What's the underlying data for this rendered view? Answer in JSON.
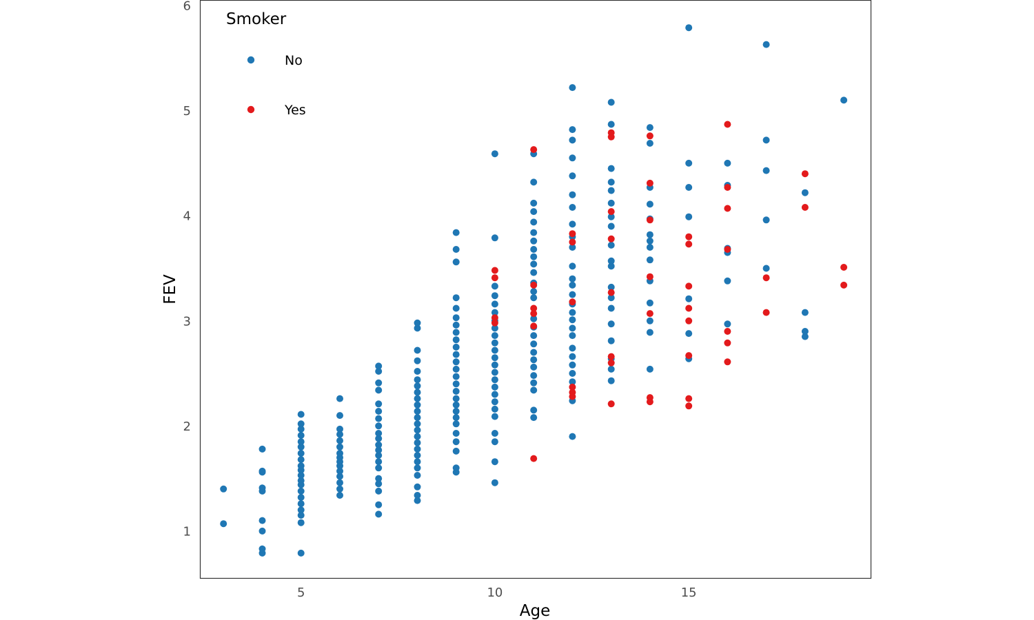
{
  "chart_data": {
    "type": "scatter",
    "title": "",
    "xlabel": "Age",
    "ylabel": "FEV",
    "xlim": [
      2.4,
      19.7
    ],
    "ylim": [
      0.55,
      6.05
    ],
    "xticks": [
      5,
      10,
      15
    ],
    "yticks": [
      1,
      2,
      3,
      4,
      5,
      6
    ],
    "grid": false,
    "legend": {
      "title": "Smoker",
      "placement": "top-left"
    },
    "colors": {
      "No": "#1f77b4",
      "Yes": "#e31a1c"
    },
    "series": [
      {
        "name": "No",
        "points": [
          [
            3,
            1.07
          ],
          [
            3,
            1.4
          ],
          [
            4,
            0.79
          ],
          [
            4,
            0.83
          ],
          [
            4,
            1.0
          ],
          [
            4,
            1.1
          ],
          [
            4,
            1.38
          ],
          [
            4,
            1.41
          ],
          [
            4,
            1.56
          ],
          [
            4,
            1.57
          ],
          [
            4,
            1.78
          ],
          [
            5,
            0.79
          ],
          [
            5,
            1.08
          ],
          [
            5,
            1.15
          ],
          [
            5,
            1.2
          ],
          [
            5,
            1.26
          ],
          [
            5,
            1.32
          ],
          [
            5,
            1.38
          ],
          [
            5,
            1.44
          ],
          [
            5,
            1.48
          ],
          [
            5,
            1.53
          ],
          [
            5,
            1.58
          ],
          [
            5,
            1.62
          ],
          [
            5,
            1.68
          ],
          [
            5,
            1.74
          ],
          [
            5,
            1.8
          ],
          [
            5,
            1.85
          ],
          [
            5,
            1.91
          ],
          [
            5,
            1.97
          ],
          [
            5,
            2.02
          ],
          [
            5,
            2.11
          ],
          [
            6,
            1.34
          ],
          [
            6,
            1.4
          ],
          [
            6,
            1.46
          ],
          [
            6,
            1.52
          ],
          [
            6,
            1.57
          ],
          [
            6,
            1.62
          ],
          [
            6,
            1.66
          ],
          [
            6,
            1.7
          ],
          [
            6,
            1.74
          ],
          [
            6,
            1.8
          ],
          [
            6,
            1.86
          ],
          [
            6,
            1.92
          ],
          [
            6,
            1.97
          ],
          [
            6,
            2.1
          ],
          [
            6,
            2.26
          ],
          [
            7,
            1.16
          ],
          [
            7,
            1.25
          ],
          [
            7,
            1.38
          ],
          [
            7,
            1.45
          ],
          [
            7,
            1.5
          ],
          [
            7,
            1.6
          ],
          [
            7,
            1.66
          ],
          [
            7,
            1.72
          ],
          [
            7,
            1.77
          ],
          [
            7,
            1.82
          ],
          [
            7,
            1.88
          ],
          [
            7,
            1.93
          ],
          [
            7,
            2.0
          ],
          [
            7,
            2.07
          ],
          [
            7,
            2.14
          ],
          [
            7,
            2.21
          ],
          [
            7,
            2.34
          ],
          [
            7,
            2.41
          ],
          [
            7,
            2.52
          ],
          [
            7,
            2.57
          ],
          [
            8,
            1.29
          ],
          [
            8,
            1.34
          ],
          [
            8,
            1.42
          ],
          [
            8,
            1.53
          ],
          [
            8,
            1.6
          ],
          [
            8,
            1.66
          ],
          [
            8,
            1.72
          ],
          [
            8,
            1.78
          ],
          [
            8,
            1.84
          ],
          [
            8,
            1.9
          ],
          [
            8,
            1.96
          ],
          [
            8,
            2.02
          ],
          [
            8,
            2.08
          ],
          [
            8,
            2.14
          ],
          [
            8,
            2.2
          ],
          [
            8,
            2.26
          ],
          [
            8,
            2.32
          ],
          [
            8,
            2.38
          ],
          [
            8,
            2.44
          ],
          [
            8,
            2.52
          ],
          [
            8,
            2.62
          ],
          [
            8,
            2.72
          ],
          [
            8,
            2.93
          ],
          [
            8,
            2.98
          ],
          [
            9,
            1.56
          ],
          [
            9,
            1.6
          ],
          [
            9,
            1.76
          ],
          [
            9,
            1.85
          ],
          [
            9,
            1.93
          ],
          [
            9,
            2.02
          ],
          [
            9,
            2.08
          ],
          [
            9,
            2.14
          ],
          [
            9,
            2.2
          ],
          [
            9,
            2.26
          ],
          [
            9,
            2.33
          ],
          [
            9,
            2.4
          ],
          [
            9,
            2.47
          ],
          [
            9,
            2.54
          ],
          [
            9,
            2.61
          ],
          [
            9,
            2.68
          ],
          [
            9,
            2.75
          ],
          [
            9,
            2.82
          ],
          [
            9,
            2.89
          ],
          [
            9,
            2.96
          ],
          [
            9,
            3.03
          ],
          [
            9,
            3.12
          ],
          [
            9,
            3.22
          ],
          [
            9,
            3.56
          ],
          [
            9,
            3.68
          ],
          [
            9,
            3.84
          ],
          [
            10,
            1.46
          ],
          [
            10,
            1.66
          ],
          [
            10,
            1.85
          ],
          [
            10,
            1.93
          ],
          [
            10,
            2.09
          ],
          [
            10,
            2.16
          ],
          [
            10,
            2.23
          ],
          [
            10,
            2.3
          ],
          [
            10,
            2.37
          ],
          [
            10,
            2.44
          ],
          [
            10,
            2.51
          ],
          [
            10,
            2.58
          ],
          [
            10,
            2.65
          ],
          [
            10,
            2.72
          ],
          [
            10,
            2.79
          ],
          [
            10,
            2.86
          ],
          [
            10,
            2.93
          ],
          [
            10,
            3.0
          ],
          [
            10,
            3.08
          ],
          [
            10,
            3.16
          ],
          [
            10,
            3.24
          ],
          [
            10,
            3.33
          ],
          [
            10,
            3.79
          ],
          [
            10,
            4.59
          ],
          [
            11,
            2.08
          ],
          [
            11,
            2.15
          ],
          [
            11,
            2.34
          ],
          [
            11,
            2.41
          ],
          [
            11,
            2.48
          ],
          [
            11,
            2.56
          ],
          [
            11,
            2.63
          ],
          [
            11,
            2.7
          ],
          [
            11,
            2.78
          ],
          [
            11,
            2.86
          ],
          [
            11,
            2.94
          ],
          [
            11,
            3.02
          ],
          [
            11,
            3.22
          ],
          [
            11,
            3.28
          ],
          [
            11,
            3.36
          ],
          [
            11,
            3.46
          ],
          [
            11,
            3.54
          ],
          [
            11,
            3.61
          ],
          [
            11,
            3.68
          ],
          [
            11,
            3.76
          ],
          [
            11,
            3.84
          ],
          [
            11,
            3.94
          ],
          [
            11,
            4.04
          ],
          [
            11,
            4.12
          ],
          [
            11,
            4.32
          ],
          [
            11,
            4.59
          ],
          [
            12,
            1.9
          ],
          [
            12,
            2.24
          ],
          [
            12,
            2.42
          ],
          [
            12,
            2.5
          ],
          [
            12,
            2.58
          ],
          [
            12,
            2.66
          ],
          [
            12,
            2.74
          ],
          [
            12,
            2.86
          ],
          [
            12,
            2.93
          ],
          [
            12,
            3.01
          ],
          [
            12,
            3.08
          ],
          [
            12,
            3.16
          ],
          [
            12,
            3.25
          ],
          [
            12,
            3.34
          ],
          [
            12,
            3.4
          ],
          [
            12,
            3.52
          ],
          [
            12,
            3.7
          ],
          [
            12,
            3.8
          ],
          [
            12,
            3.92
          ],
          [
            12,
            4.08
          ],
          [
            12,
            4.2
          ],
          [
            12,
            4.38
          ],
          [
            12,
            4.55
          ],
          [
            12,
            4.72
          ],
          [
            12,
            4.82
          ],
          [
            12,
            5.22
          ],
          [
            13,
            2.43
          ],
          [
            13,
            2.54
          ],
          [
            13,
            2.64
          ],
          [
            13,
            2.81
          ],
          [
            13,
            2.97
          ],
          [
            13,
            3.12
          ],
          [
            13,
            3.22
          ],
          [
            13,
            3.32
          ],
          [
            13,
            3.52
          ],
          [
            13,
            3.57
          ],
          [
            13,
            3.72
          ],
          [
            13,
            3.9
          ],
          [
            13,
            3.99
          ],
          [
            13,
            4.12
          ],
          [
            13,
            4.24
          ],
          [
            13,
            4.32
          ],
          [
            13,
            4.45
          ],
          [
            13,
            4.87
          ],
          [
            13,
            5.08
          ],
          [
            14,
            2.54
          ],
          [
            14,
            2.89
          ],
          [
            14,
            3.0
          ],
          [
            14,
            3.17
          ],
          [
            14,
            3.38
          ],
          [
            14,
            3.58
          ],
          [
            14,
            3.7
          ],
          [
            14,
            3.76
          ],
          [
            14,
            3.82
          ],
          [
            14,
            3.97
          ],
          [
            14,
            4.11
          ],
          [
            14,
            4.27
          ],
          [
            14,
            4.69
          ],
          [
            14,
            4.84
          ],
          [
            15,
            2.64
          ],
          [
            15,
            2.88
          ],
          [
            15,
            3.21
          ],
          [
            15,
            3.99
          ],
          [
            15,
            4.27
          ],
          [
            15,
            4.5
          ],
          [
            15,
            5.79
          ],
          [
            16,
            2.97
          ],
          [
            16,
            3.38
          ],
          [
            16,
            3.65
          ],
          [
            16,
            3.69
          ],
          [
            16,
            4.29
          ],
          [
            16,
            4.5
          ],
          [
            17,
            3.5
          ],
          [
            17,
            3.96
          ],
          [
            17,
            4.43
          ],
          [
            17,
            4.72
          ],
          [
            17,
            5.63
          ],
          [
            18,
            2.85
          ],
          [
            18,
            2.9
          ],
          [
            18,
            3.08
          ],
          [
            18,
            4.22
          ],
          [
            19,
            5.1
          ]
        ]
      },
      {
        "name": "Yes",
        "points": [
          [
            10,
            2.98
          ],
          [
            10,
            3.03
          ],
          [
            10,
            3.41
          ],
          [
            10,
            3.48
          ],
          [
            11,
            1.69
          ],
          [
            11,
            2.95
          ],
          [
            11,
            3.07
          ],
          [
            11,
            3.12
          ],
          [
            11,
            3.34
          ],
          [
            11,
            4.63
          ],
          [
            12,
            2.28
          ],
          [
            12,
            2.32
          ],
          [
            12,
            2.37
          ],
          [
            12,
            3.18
          ],
          [
            12,
            3.75
          ],
          [
            12,
            3.83
          ],
          [
            13,
            2.21
          ],
          [
            13,
            2.6
          ],
          [
            13,
            2.66
          ],
          [
            13,
            3.27
          ],
          [
            13,
            3.78
          ],
          [
            13,
            4.04
          ],
          [
            13,
            4.75
          ],
          [
            13,
            4.79
          ],
          [
            14,
            2.23
          ],
          [
            14,
            2.27
          ],
          [
            14,
            3.07
          ],
          [
            14,
            3.42
          ],
          [
            14,
            3.96
          ],
          [
            14,
            4.31
          ],
          [
            14,
            4.76
          ],
          [
            15,
            2.19
          ],
          [
            15,
            2.26
          ],
          [
            15,
            2.67
          ],
          [
            15,
            3.0
          ],
          [
            15,
            3.12
          ],
          [
            15,
            3.33
          ],
          [
            15,
            3.73
          ],
          [
            15,
            3.8
          ],
          [
            16,
            2.61
          ],
          [
            16,
            2.79
          ],
          [
            16,
            2.9
          ],
          [
            16,
            3.68
          ],
          [
            16,
            4.07
          ],
          [
            16,
            4.27
          ],
          [
            16,
            4.87
          ],
          [
            17,
            3.08
          ],
          [
            17,
            3.41
          ],
          [
            18,
            4.08
          ],
          [
            18,
            4.4
          ],
          [
            19,
            3.34
          ],
          [
            19,
            3.51
          ]
        ]
      }
    ]
  }
}
